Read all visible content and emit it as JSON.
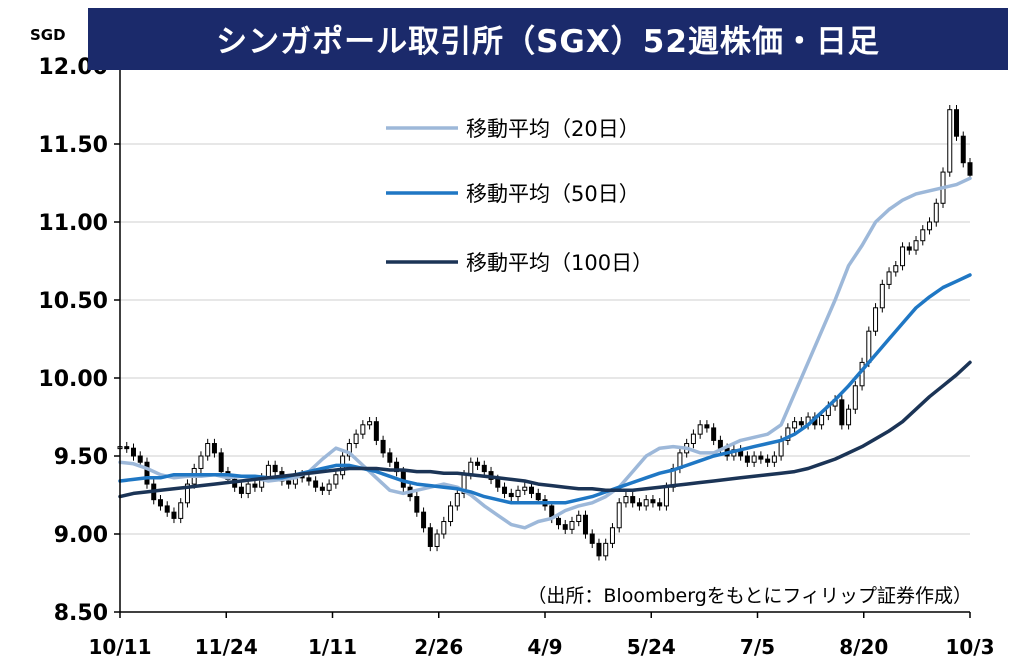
{
  "chart_data": {
    "type": "line",
    "title": "シンガポール取引所（SGX）52週株価・日足",
    "unit": "SGD",
    "source": "（出所：Bloombergをもとにフィリップ証券作成）",
    "y_ticks": [
      "8.50",
      "9.00",
      "9.50",
      "10.00",
      "10.50",
      "11.00",
      "11.50",
      "12.00"
    ],
    "ylim": [
      8.5,
      12.0
    ],
    "x_ticks": [
      "10/11",
      "11/24",
      "1/11",
      "2/26",
      "4/9",
      "5/24",
      "7/5",
      "8/20",
      "10/3"
    ],
    "grid": true,
    "legend_placement": "top-center",
    "price_series": {
      "style": "candlestick",
      "color": "#000000",
      "x": [
        0,
        2,
        4,
        6,
        8,
        10,
        12,
        14,
        16,
        18,
        20,
        22,
        24,
        26,
        28,
        30,
        32,
        34,
        36,
        38,
        40,
        42,
        44,
        46,
        48,
        50,
        52,
        54,
        56,
        58,
        60,
        62,
        64,
        66,
        68,
        70,
        72,
        74,
        76,
        78,
        80,
        82,
        84,
        86,
        88,
        90,
        92,
        94,
        96,
        98,
        100,
        102,
        104,
        106,
        108,
        110,
        112,
        114,
        116,
        118,
        120,
        122,
        124,
        126,
        128,
        130,
        132,
        134,
        136,
        138,
        140,
        142,
        144,
        146,
        148,
        150,
        152,
        154,
        156,
        158,
        160,
        162,
        164,
        166,
        168,
        170,
        172,
        174,
        176,
        178,
        180,
        182,
        184,
        186,
        188,
        190,
        192,
        194,
        196,
        198,
        200,
        202,
        204,
        206,
        208,
        210,
        212,
        214,
        216,
        218,
        220,
        222,
        224,
        226,
        228,
        230,
        232,
        234,
        236,
        238,
        240,
        242,
        244,
        246,
        248,
        250,
        252
      ],
      "close": [
        9.56,
        9.55,
        9.5,
        9.46,
        9.32,
        9.22,
        9.18,
        9.14,
        9.1,
        9.2,
        9.32,
        9.42,
        9.5,
        9.58,
        9.52,
        9.4,
        9.35,
        9.3,
        9.26,
        9.32,
        9.3,
        9.36,
        9.44,
        9.4,
        9.34,
        9.32,
        9.38,
        9.36,
        9.34,
        9.3,
        9.28,
        9.32,
        9.38,
        9.5,
        9.58,
        9.64,
        9.7,
        9.72,
        9.6,
        9.52,
        9.46,
        9.4,
        9.3,
        9.24,
        9.14,
        9.04,
        8.92,
        9.0,
        9.08,
        9.18,
        9.26,
        9.38,
        9.46,
        9.44,
        9.4,
        9.35,
        9.3,
        9.26,
        9.24,
        9.28,
        9.3,
        9.26,
        9.22,
        9.18,
        9.1,
        9.06,
        9.03,
        9.08,
        9.12,
        9.0,
        8.94,
        8.86,
        8.94,
        9.04,
        9.2,
        9.24,
        9.2,
        9.18,
        9.22,
        9.2,
        9.18,
        9.3,
        9.42,
        9.52,
        9.58,
        9.64,
        9.7,
        9.68,
        9.6,
        9.55,
        9.5,
        9.54,
        9.5,
        9.46,
        9.5,
        9.48,
        9.46,
        9.5,
        9.6,
        9.68,
        9.72,
        9.7,
        9.75,
        9.7,
        9.76,
        9.82,
        9.86,
        9.7,
        9.8,
        9.95,
        10.1,
        10.3,
        10.45,
        10.6,
        10.68,
        10.72,
        10.84,
        10.82,
        10.88,
        10.95,
        11.0,
        11.12,
        11.32,
        11.72,
        11.55,
        11.38,
        11.3
      ]
    },
    "series": [
      {
        "name": "移動平均（20日）",
        "color": "#9db8d9",
        "x": [
          0,
          4,
          8,
          12,
          16,
          20,
          24,
          28,
          32,
          36,
          40,
          44,
          48,
          52,
          56,
          60,
          64,
          68,
          72,
          76,
          80,
          84,
          88,
          92,
          96,
          100,
          104,
          108,
          112,
          116,
          120,
          124,
          128,
          132,
          136,
          140,
          144,
          148,
          152,
          156,
          160,
          164,
          168,
          172,
          176,
          180,
          184,
          188,
          192,
          196,
          200,
          204,
          208,
          212,
          216,
          220,
          224,
          228,
          232,
          236,
          240,
          244,
          248,
          252
        ],
        "values": [
          9.46,
          9.45,
          9.42,
          9.38,
          9.36,
          9.37,
          9.37,
          9.38,
          9.36,
          9.37,
          9.36,
          9.34,
          9.35,
          9.36,
          9.4,
          9.48,
          9.55,
          9.52,
          9.44,
          9.36,
          9.28,
          9.26,
          9.28,
          9.3,
          9.32,
          9.3,
          9.25,
          9.18,
          9.12,
          9.06,
          9.04,
          9.08,
          9.1,
          9.15,
          9.18,
          9.2,
          9.24,
          9.3,
          9.4,
          9.5,
          9.55,
          9.56,
          9.55,
          9.52,
          9.52,
          9.56,
          9.6,
          9.62,
          9.64,
          9.7,
          9.9,
          10.1,
          10.3,
          10.5,
          10.72,
          10.85,
          11.0,
          11.08,
          11.14,
          11.18,
          11.2,
          11.22,
          11.24,
          11.28
        ]
      },
      {
        "name": "移動平均（50日）",
        "color": "#1f77c4",
        "x": [
          0,
          4,
          8,
          12,
          16,
          20,
          24,
          28,
          32,
          36,
          40,
          44,
          48,
          52,
          56,
          60,
          64,
          68,
          72,
          76,
          80,
          84,
          88,
          92,
          96,
          100,
          104,
          108,
          112,
          116,
          120,
          124,
          128,
          132,
          136,
          140,
          144,
          148,
          152,
          156,
          160,
          164,
          168,
          172,
          176,
          180,
          184,
          188,
          192,
          196,
          200,
          204,
          208,
          212,
          216,
          220,
          224,
          228,
          232,
          236,
          240,
          244,
          248,
          252
        ],
        "values": [
          9.34,
          9.35,
          9.36,
          9.36,
          9.38,
          9.38,
          9.38,
          9.38,
          9.38,
          9.37,
          9.37,
          9.36,
          9.36,
          9.38,
          9.4,
          9.42,
          9.44,
          9.44,
          9.42,
          9.4,
          9.37,
          9.34,
          9.32,
          9.31,
          9.3,
          9.29,
          9.27,
          9.24,
          9.22,
          9.2,
          9.2,
          9.2,
          9.2,
          9.2,
          9.22,
          9.24,
          9.27,
          9.3,
          9.33,
          9.36,
          9.39,
          9.41,
          9.44,
          9.47,
          9.5,
          9.52,
          9.54,
          9.56,
          9.58,
          9.6,
          9.64,
          9.7,
          9.78,
          9.86,
          9.95,
          10.05,
          10.15,
          10.25,
          10.35,
          10.45,
          10.52,
          10.58,
          10.62,
          10.66
        ]
      },
      {
        "name": "移動平均（100日）",
        "color": "#1b3456",
        "x": [
          0,
          4,
          8,
          12,
          16,
          20,
          24,
          28,
          32,
          36,
          40,
          44,
          48,
          52,
          56,
          60,
          64,
          68,
          72,
          76,
          80,
          84,
          88,
          92,
          96,
          100,
          104,
          108,
          112,
          116,
          120,
          124,
          128,
          132,
          136,
          140,
          144,
          148,
          152,
          156,
          160,
          164,
          168,
          172,
          176,
          180,
          184,
          188,
          192,
          196,
          200,
          204,
          208,
          212,
          216,
          220,
          224,
          228,
          232,
          236,
          240,
          244,
          248,
          252
        ],
        "values": [
          9.24,
          9.26,
          9.27,
          9.28,
          9.29,
          9.3,
          9.31,
          9.32,
          9.33,
          9.34,
          9.35,
          9.36,
          9.37,
          9.38,
          9.39,
          9.4,
          9.41,
          9.42,
          9.42,
          9.42,
          9.41,
          9.41,
          9.4,
          9.4,
          9.39,
          9.39,
          9.38,
          9.37,
          9.36,
          9.35,
          9.34,
          9.32,
          9.31,
          9.3,
          9.29,
          9.29,
          9.28,
          9.28,
          9.28,
          9.29,
          9.3,
          9.31,
          9.32,
          9.33,
          9.34,
          9.35,
          9.36,
          9.37,
          9.38,
          9.39,
          9.4,
          9.42,
          9.45,
          9.48,
          9.52,
          9.56,
          9.61,
          9.66,
          9.72,
          9.8,
          9.88,
          9.95,
          10.02,
          10.1
        ]
      }
    ]
  }
}
